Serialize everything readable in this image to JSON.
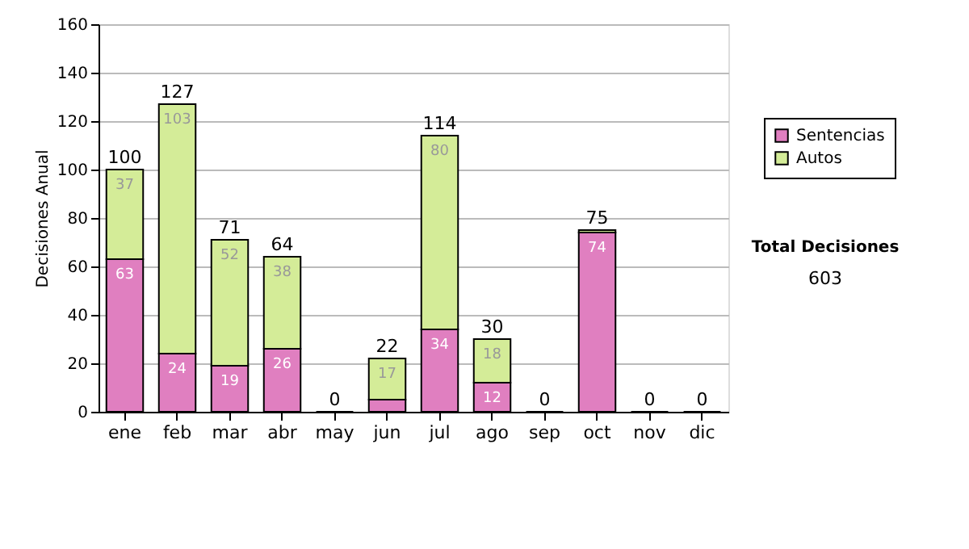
{
  "chart_data": {
    "type": "bar",
    "stacked": true,
    "ylabel": "Decisiones Anual",
    "categories": [
      "ene",
      "feb",
      "mar",
      "abr",
      "may",
      "jun",
      "jul",
      "ago",
      "sep",
      "oct",
      "nov",
      "dic"
    ],
    "series": [
      {
        "name": "Sentencias",
        "color": "#e07fc0",
        "values": [
          63,
          24,
          19,
          26,
          0,
          5,
          34,
          12,
          0,
          74,
          0,
          0
        ],
        "value_labels": [
          "63",
          "24",
          "19",
          "26",
          null,
          null,
          "34",
          "12",
          null,
          "74",
          null,
          null
        ]
      },
      {
        "name": "Autos",
        "color": "#d4ec98",
        "values": [
          37,
          103,
          52,
          38,
          0,
          17,
          80,
          18,
          0,
          1,
          0,
          0
        ],
        "value_labels": [
          "37",
          "103",
          "52",
          "38",
          null,
          "17",
          "80",
          "18",
          null,
          null,
          null,
          null
        ]
      }
    ],
    "totals": [
      "100",
      "127",
      "71",
      "64",
      "0",
      "22",
      "114",
      "30",
      "0",
      "75",
      "0",
      "0"
    ],
    "ylim": [
      0,
      160
    ],
    "yticks": [
      0,
      20,
      40,
      60,
      80,
      100,
      120,
      140,
      160
    ],
    "grid": "y",
    "legend": "right",
    "annotations": [
      "Total Decisiones",
      "603"
    ]
  }
}
